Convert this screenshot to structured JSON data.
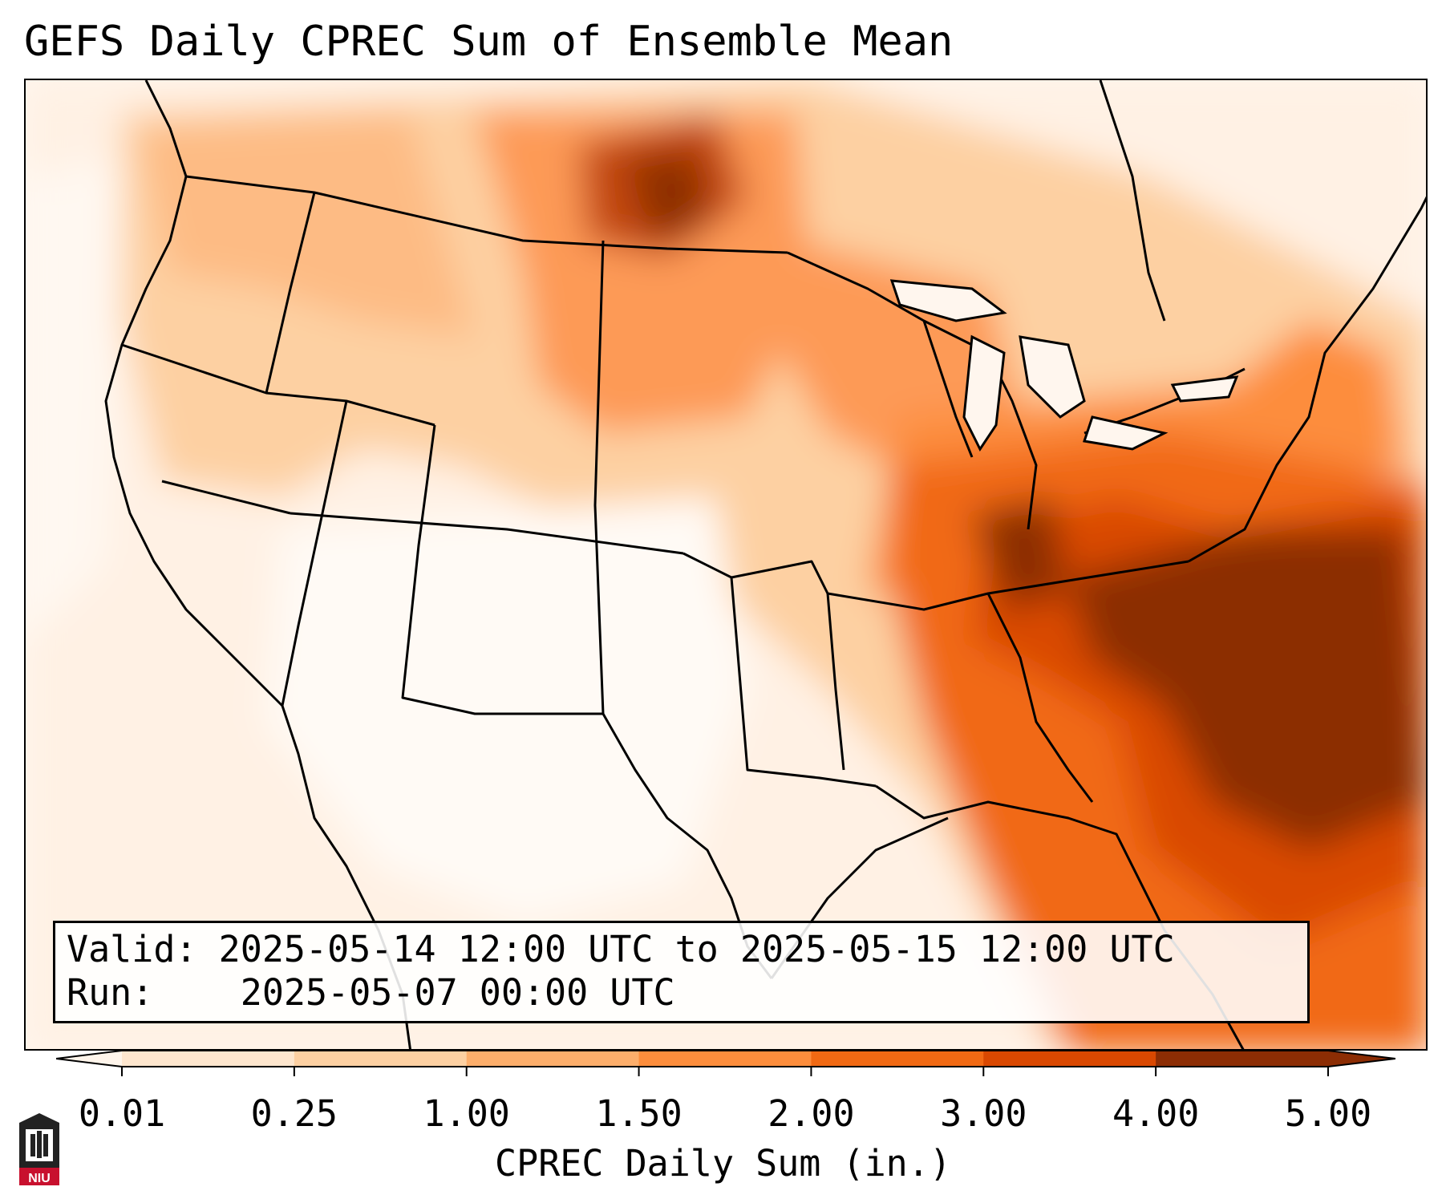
{
  "title": "GEFS Daily CPREC Sum of Ensemble Mean",
  "info": {
    "valid_label": "Valid:",
    "valid_value": "2025-05-14 12:00 UTC to 2025-05-15 12:00 UTC",
    "run_label": "Run:",
    "run_value": "2025-05-07 00:00 UTC"
  },
  "colorbar": {
    "label": "CPREC Daily Sum (in.)",
    "ticks": [
      "0.01",
      "0.25",
      "1.00",
      "1.50",
      "2.00",
      "3.00",
      "4.00",
      "5.00"
    ],
    "colors": [
      "#fff5eb",
      "#fee6ce",
      "#fdd0a2",
      "#fdae6b",
      "#fd8d3c",
      "#f16913",
      "#d94801",
      "#8c2d04"
    ]
  },
  "logo": {
    "text": "NIU",
    "accent": "#c8102e"
  }
}
